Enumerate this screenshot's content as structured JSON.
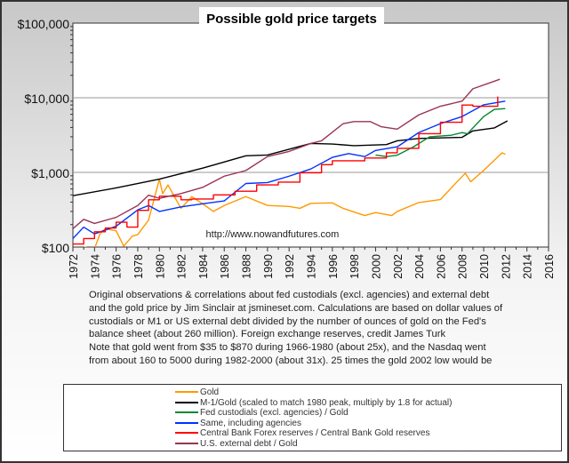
{
  "chart_data": {
    "type": "line",
    "title": "Possible gold price targets",
    "watermark": "http://www.nowandfutures.com",
    "y_scale": "log",
    "ylim": [
      100,
      100000
    ],
    "y_ticks": [
      100,
      1000,
      10000,
      100000
    ],
    "y_tick_labels": [
      "$100",
      "$1,000",
      "$10,000",
      "$100,000"
    ],
    "xlim": [
      1972,
      2016
    ],
    "x_tick_labels": [
      "1972",
      "1974",
      "1976",
      "1978",
      "1980",
      "1982",
      "1984",
      "1986",
      "1988",
      "1990",
      "1992",
      "1994",
      "1996",
      "1998",
      "2000",
      "2002",
      "2004",
      "2006",
      "2008",
      "2010",
      "2012",
      "2014",
      "2016"
    ],
    "grid": "horizontal at decades",
    "legend_placement": "bottom",
    "series": [
      {
        "name": "Gold",
        "color": "#ff9900",
        "x": [
          1973,
          1974,
          1974.5,
          1975,
          1976,
          1976.7,
          1977.5,
          1978,
          1979,
          1980,
          1980.3,
          1980.8,
          1981.3,
          1982,
          1983,
          1984,
          1985,
          1986,
          1988,
          1990,
          1992,
          1993,
          1994,
          1996,
          1997,
          1999,
          2000,
          2001.5,
          2002,
          2004,
          2006,
          2007,
          2008.3,
          2008.8,
          2010,
          2011.7,
          2012
        ],
        "y": [
          100,
          95,
          150,
          176,
          165,
          103,
          140,
          147,
          230,
          813,
          520,
          680,
          500,
          330,
          474,
          380,
          300,
          360,
          474,
          361,
          350,
          330,
          385,
          390,
          330,
          264,
          290,
          264,
          300,
          395,
          433,
          620,
          975,
          750,
          1065,
          1830,
          1750
        ]
      },
      {
        "name": "M-1/Gold (scaled to match 1980 peak, multiply by 1.8 for actual)",
        "color": "#000000",
        "x": [
          1972,
          1976,
          1980,
          1984,
          1988,
          1990,
          1994,
          1996,
          1998,
          2001,
          2002,
          2004,
          2008,
          2009,
          2011,
          2012.2
        ],
        "y": [
          487,
          620,
          813,
          1140,
          1670,
          1710,
          2440,
          2400,
          2280,
          2360,
          2650,
          2850,
          2950,
          3600,
          3950,
          4900
        ]
      },
      {
        "name": "Fed custodials (excl. agencies) / Gold",
        "color": "#008833",
        "x": [
          2000,
          2001,
          2002,
          2003.5,
          2005,
          2007,
          2008,
          2008.5,
          2010,
          2011,
          2012
        ],
        "y": [
          1710,
          1630,
          1700,
          2200,
          3000,
          3150,
          3420,
          3300,
          5600,
          7000,
          7150
        ]
      },
      {
        "name": "Same, including agencies",
        "color": "#0033ff",
        "x": [
          1972,
          1973,
          1974,
          1976,
          1978,
          1979,
          1980,
          1982,
          1984,
          1986,
          1988,
          1990,
          1992,
          1994,
          1996,
          1997.5,
          1999,
          2000,
          2002,
          2004,
          2006,
          2008,
          2010,
          2012
        ],
        "y": [
          130,
          185,
          150,
          190,
          315,
          360,
          300,
          345,
          380,
          415,
          710,
          730,
          890,
          1110,
          1590,
          1790,
          1630,
          1970,
          2200,
          3420,
          4500,
          5600,
          8050,
          9000
        ]
      },
      {
        "name": "Central Bank Forex reserves / Central Bank Gold reserves",
        "color": "#ff0000",
        "step": true,
        "x": [
          1972,
          1973,
          1974,
          1975,
          1976,
          1977,
          1978,
          1979,
          1980,
          1982,
          1983,
          1985,
          1987,
          1989,
          1991,
          1993,
          1995,
          1996,
          1999,
          2001,
          2002,
          2004,
          2006,
          2008,
          2009,
          2011.3
        ],
        "y": [
          110,
          130,
          160,
          180,
          215,
          185,
          310,
          430,
          480,
          430,
          440,
          500,
          560,
          680,
          740,
          990,
          1270,
          1430,
          1560,
          1830,
          2100,
          3300,
          4700,
          8000,
          7700,
          10400
        ]
      },
      {
        "name": "U.S. external debt / Gold",
        "color": "#993355",
        "x": [
          1972,
          1973,
          1974,
          1976,
          1978,
          1979,
          1980,
          1982,
          1984,
          1986,
          1988,
          1990,
          1992,
          1994,
          1995,
          1997,
          1998,
          1999.5,
          2000.5,
          2002,
          2004,
          2006,
          2008,
          2009,
          2011.5
        ],
        "y": [
          176,
          235,
          207,
          250,
          360,
          495,
          450,
          520,
          630,
          890,
          1060,
          1630,
          1910,
          2440,
          2650,
          4500,
          4800,
          4800,
          4100,
          3800,
          5900,
          7700,
          9000,
          13200,
          17700
        ]
      }
    ]
  },
  "notes": [
    "Original observations & correlations about fed custodials (excl. agencies) and external debt and the gold price by Jim Sinclair at jsmineset.com. Calculations are based on dollar values of custodials or M1 or US external debt divided by the number of ounces of gold on the Fed's balance sheet (about 260 million). Foreign exchange reserves, credit James Turk",
    "Note that gold went from $35 to $870 during 1966-1980 (about 25x), and the Nasdaq went from about 160 to 5000 during 1982-2000 (about 31x). 25 times the gold 2002 low would be about"
  ]
}
